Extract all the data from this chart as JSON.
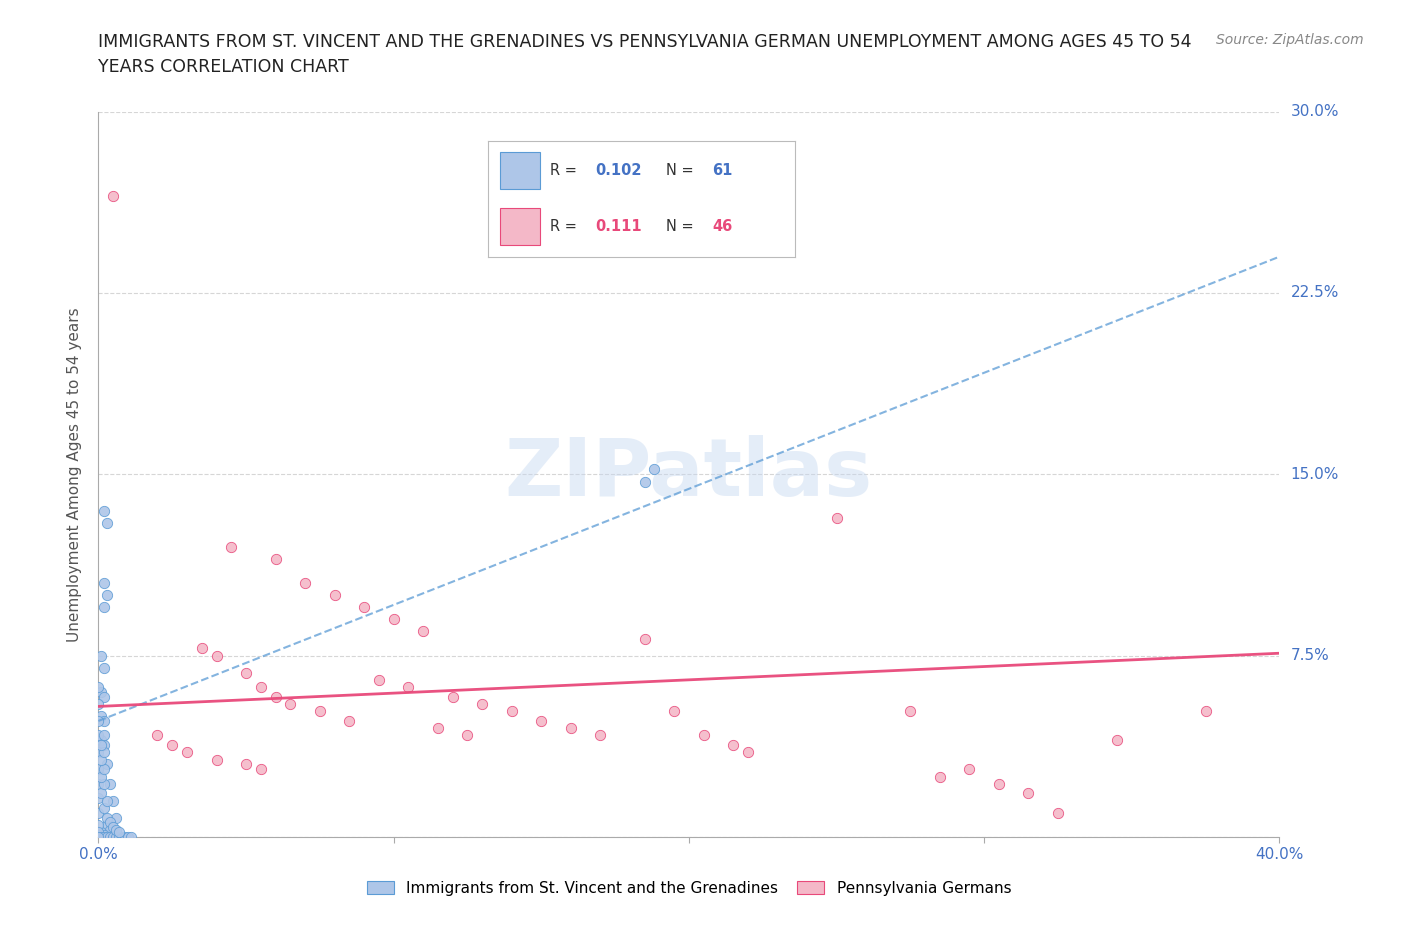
{
  "title_line1": "IMMIGRANTS FROM ST. VINCENT AND THE GRENADINES VS PENNSYLVANIA GERMAN UNEMPLOYMENT AMONG AGES 45 TO 54",
  "title_line2": "YEARS CORRELATION CHART",
  "source": "Source: ZipAtlas.com",
  "ylabel": "Unemployment Among Ages 45 to 54 years",
  "xlabel_blue": "Immigrants from St. Vincent and the Grenadines",
  "xlabel_pink": "Pennsylvania Germans",
  "xlim": [
    0.0,
    0.4
  ],
  "ylim": [
    0.0,
    0.3
  ],
  "xticks": [
    0.0,
    0.1,
    0.2,
    0.3,
    0.4
  ],
  "yticks": [
    0.0,
    0.075,
    0.15,
    0.225,
    0.3
  ],
  "ytick_labels": [
    "",
    "7.5%",
    "15.0%",
    "22.5%",
    "30.0%"
  ],
  "xtick_labels": [
    "0.0%",
    "",
    "",
    "",
    "40.0%"
  ],
  "blue_R": "0.102",
  "blue_N": "61",
  "pink_R": "0.111",
  "pink_N": "46",
  "blue_color": "#aec6e8",
  "pink_color": "#f4b8c8",
  "blue_line_color": "#5b9bd5",
  "pink_line_color": "#e8497a",
  "blue_trend": [
    0.0,
    0.4,
    0.048,
    0.24
  ],
  "pink_trend": [
    0.0,
    0.4,
    0.054,
    0.076
  ],
  "watermark": "ZIPatlas",
  "blue_scatter": [
    [
      0.002,
      0.135
    ],
    [
      0.003,
      0.13
    ],
    [
      0.002,
      0.105
    ],
    [
      0.003,
      0.1
    ],
    [
      0.002,
      0.095
    ],
    [
      0.001,
      0.075
    ],
    [
      0.002,
      0.07
    ],
    [
      0.001,
      0.06
    ],
    [
      0.002,
      0.058
    ],
    [
      0.001,
      0.05
    ],
    [
      0.002,
      0.048
    ],
    [
      0.001,
      0.04
    ],
    [
      0.002,
      0.038
    ],
    [
      0.003,
      0.03
    ],
    [
      0.004,
      0.022
    ],
    [
      0.005,
      0.015
    ],
    [
      0.006,
      0.008
    ],
    [
      0.003,
      0.005
    ],
    [
      0.004,
      0.003
    ],
    [
      0.001,
      0.002
    ],
    [
      0.002,
      0.001
    ],
    [
      0.0,
      0.062
    ],
    [
      0.0,
      0.055
    ],
    [
      0.0,
      0.048
    ],
    [
      0.0,
      0.042
    ],
    [
      0.0,
      0.035
    ],
    [
      0.0,
      0.028
    ],
    [
      0.0,
      0.022
    ],
    [
      0.0,
      0.016
    ],
    [
      0.0,
      0.01
    ],
    [
      0.0,
      0.005
    ],
    [
      0.0,
      0.002
    ],
    [
      0.001,
      0.0
    ],
    [
      0.002,
      0.0
    ],
    [
      0.003,
      0.0
    ],
    [
      0.004,
      0.0
    ],
    [
      0.005,
      0.0
    ],
    [
      0.006,
      0.0
    ],
    [
      0.007,
      0.0
    ],
    [
      0.008,
      0.0
    ],
    [
      0.009,
      0.0
    ],
    [
      0.01,
      0.0
    ],
    [
      0.011,
      0.0
    ],
    [
      0.003,
      0.008
    ],
    [
      0.004,
      0.006
    ],
    [
      0.005,
      0.004
    ],
    [
      0.006,
      0.003
    ],
    [
      0.007,
      0.002
    ],
    [
      0.002,
      0.012
    ],
    [
      0.003,
      0.015
    ],
    [
      0.001,
      0.018
    ],
    [
      0.002,
      0.022
    ],
    [
      0.001,
      0.025
    ],
    [
      0.002,
      0.028
    ],
    [
      0.001,
      0.032
    ],
    [
      0.002,
      0.035
    ],
    [
      0.001,
      0.038
    ],
    [
      0.002,
      0.042
    ],
    [
      0.185,
      0.147
    ],
    [
      0.188,
      0.152
    ],
    [
      0.0,
      0.0
    ]
  ],
  "pink_scatter": [
    [
      0.005,
      0.265
    ],
    [
      0.045,
      0.12
    ],
    [
      0.06,
      0.115
    ],
    [
      0.07,
      0.105
    ],
    [
      0.08,
      0.1
    ],
    [
      0.09,
      0.095
    ],
    [
      0.1,
      0.09
    ],
    [
      0.11,
      0.085
    ],
    [
      0.035,
      0.078
    ],
    [
      0.04,
      0.075
    ],
    [
      0.05,
      0.068
    ],
    [
      0.055,
      0.062
    ],
    [
      0.06,
      0.058
    ],
    [
      0.065,
      0.055
    ],
    [
      0.075,
      0.052
    ],
    [
      0.085,
      0.048
    ],
    [
      0.095,
      0.065
    ],
    [
      0.105,
      0.062
    ],
    [
      0.12,
      0.058
    ],
    [
      0.13,
      0.055
    ],
    [
      0.14,
      0.052
    ],
    [
      0.15,
      0.048
    ],
    [
      0.16,
      0.045
    ],
    [
      0.17,
      0.042
    ],
    [
      0.185,
      0.082
    ],
    [
      0.25,
      0.132
    ],
    [
      0.02,
      0.042
    ],
    [
      0.025,
      0.038
    ],
    [
      0.03,
      0.035
    ],
    [
      0.04,
      0.032
    ],
    [
      0.05,
      0.03
    ],
    [
      0.055,
      0.028
    ],
    [
      0.115,
      0.045
    ],
    [
      0.125,
      0.042
    ],
    [
      0.195,
      0.052
    ],
    [
      0.205,
      0.042
    ],
    [
      0.215,
      0.038
    ],
    [
      0.22,
      0.035
    ],
    [
      0.275,
      0.052
    ],
    [
      0.285,
      0.025
    ],
    [
      0.295,
      0.028
    ],
    [
      0.305,
      0.022
    ],
    [
      0.315,
      0.018
    ],
    [
      0.325,
      0.01
    ],
    [
      0.345,
      0.04
    ],
    [
      0.375,
      0.052
    ]
  ]
}
